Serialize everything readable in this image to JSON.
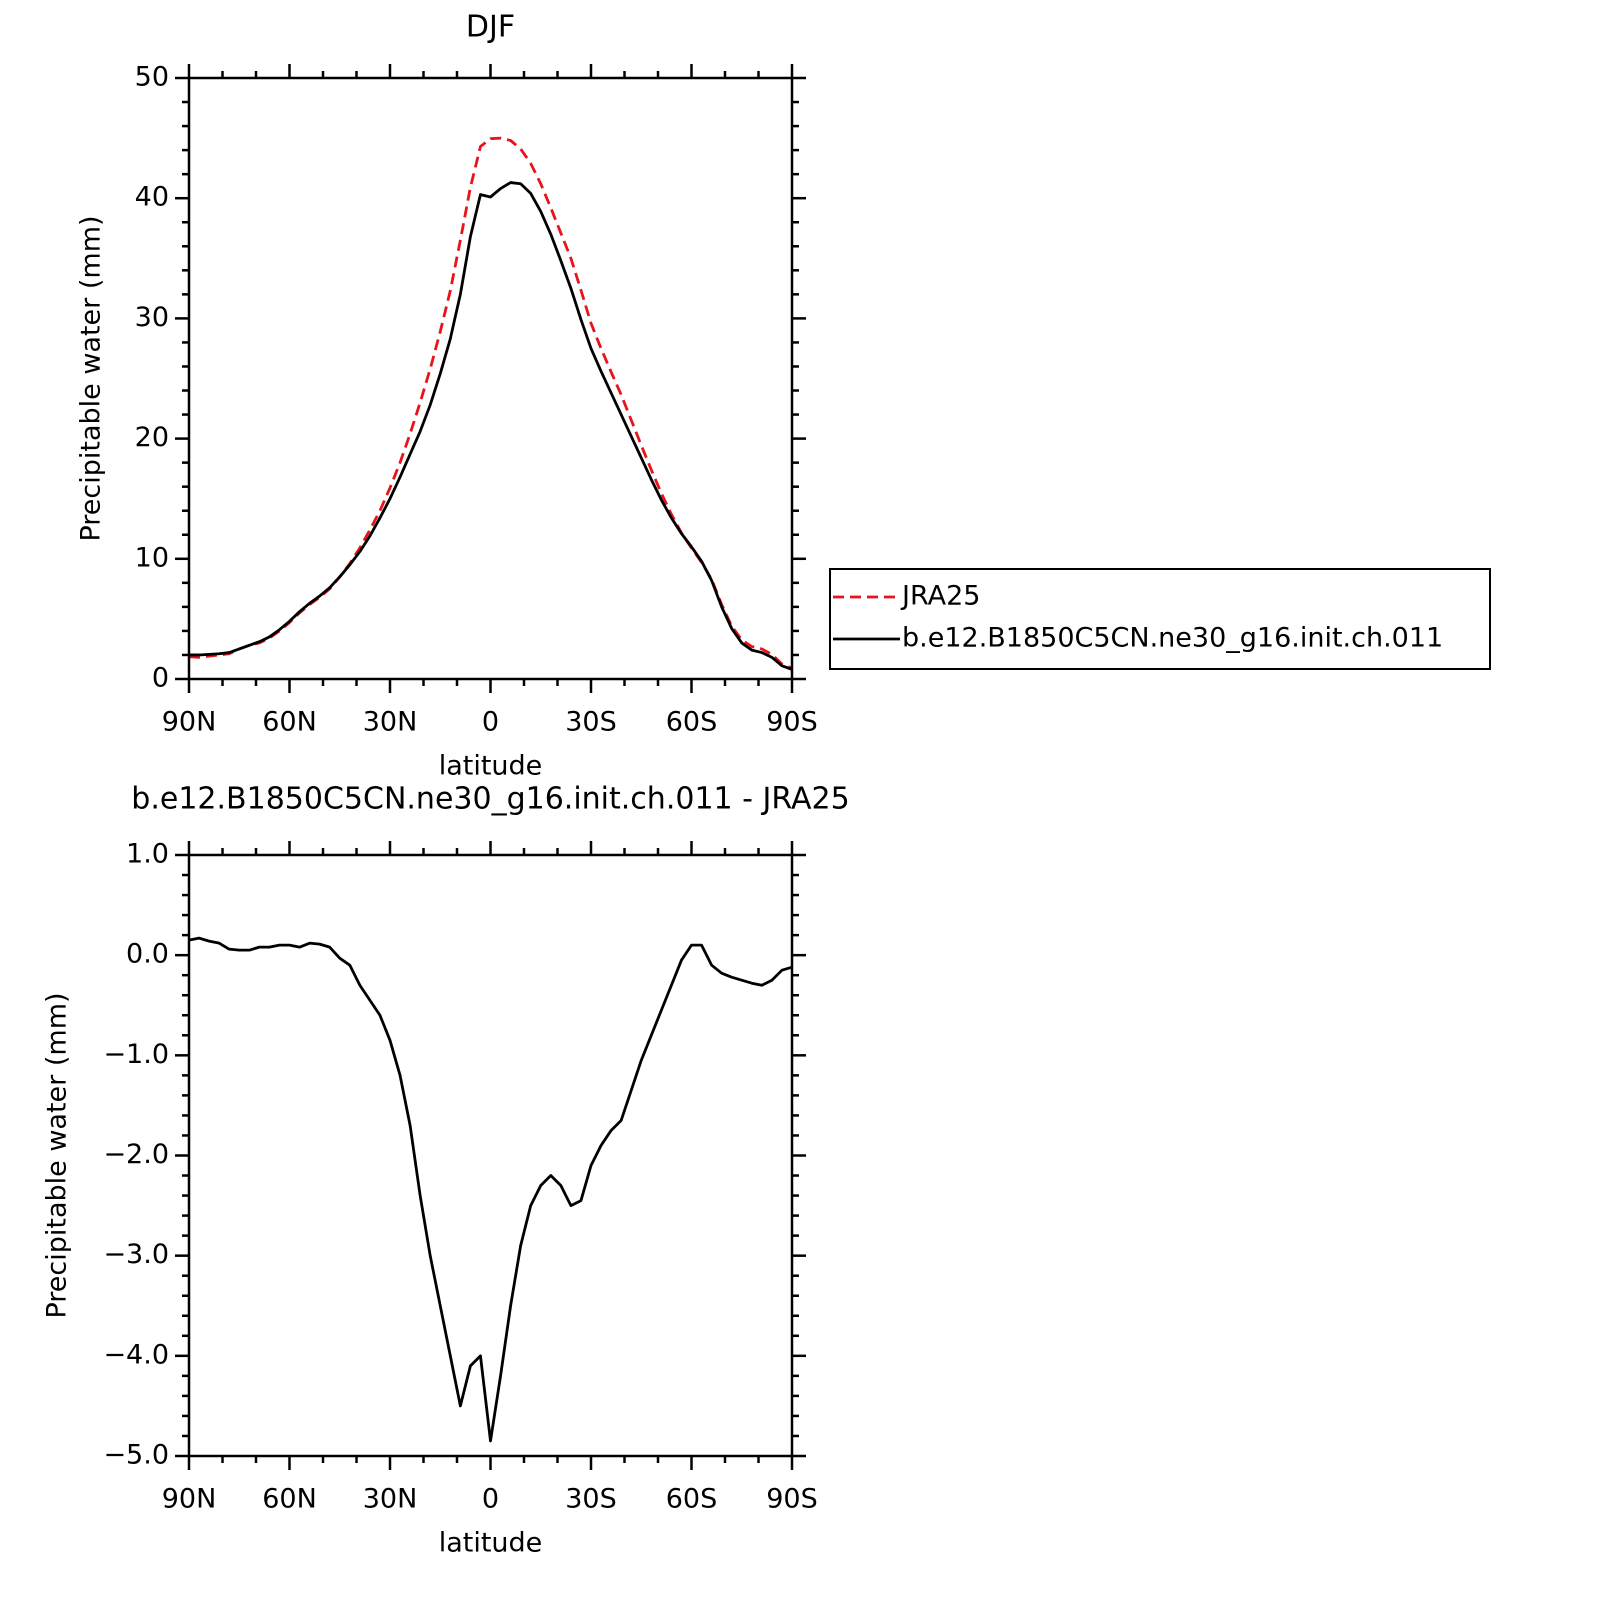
{
  "chart_data": [
    {
      "type": "line",
      "title": "DJF",
      "ylabel": "Precipitable water (mm)",
      "xlabel": "latitude",
      "x": [
        90,
        87,
        84,
        81,
        78,
        75,
        72,
        69,
        66,
        63,
        60,
        57,
        54,
        51,
        48,
        45,
        42,
        39,
        36,
        33,
        30,
        27,
        24,
        21,
        18,
        15,
        12,
        9,
        6,
        3,
        0,
        -3,
        -6,
        -9,
        -12,
        -15,
        -18,
        -21,
        -24,
        -27,
        -30,
        -33,
        -36,
        -39,
        -42,
        -45,
        -48,
        -51,
        -54,
        -57,
        -60,
        -63,
        -66,
        -69,
        -72,
        -75,
        -78,
        -81,
        -84,
        -87,
        -90
      ],
      "series": [
        {
          "name": "JRA25",
          "color": "#e8141c",
          "linestyle": "dashed",
          "values": [
            1.85,
            1.8,
            1.9,
            2.0,
            2.1,
            2.5,
            2.8,
            3.0,
            3.4,
            4.0,
            4.7,
            5.5,
            6.2,
            6.8,
            7.5,
            8.5,
            9.6,
            10.9,
            12.4,
            14.0,
            15.9,
            18.0,
            20.4,
            23.0,
            25.8,
            28.9,
            32.3,
            36.5,
            40.9,
            44.3,
            44.95,
            45.0,
            44.8,
            44.1,
            42.9,
            41.2,
            39.2,
            37.1,
            35.0,
            32.35,
            29.6,
            27.5,
            25.55,
            23.65,
            21.55,
            19.45,
            17.4,
            15.45,
            13.7,
            12.15,
            10.9,
            9.7,
            8.3,
            6.2,
            4.4,
            3.25,
            2.7,
            2.5,
            2.05,
            1.25,
            0.9
          ]
        },
        {
          "name": "b.e12.B1850C5CN.ne30_g16.init.ch.011",
          "color": "#000000",
          "linestyle": "solid",
          "values": [
            2.0,
            2.0,
            2.05,
            2.1,
            2.2,
            2.5,
            2.8,
            3.1,
            3.5,
            4.1,
            4.8,
            5.6,
            6.3,
            6.9,
            7.6,
            8.5,
            9.5,
            10.6,
            11.9,
            13.4,
            15.0,
            16.8,
            18.7,
            20.6,
            22.8,
            25.4,
            28.3,
            32.0,
            36.8,
            40.3,
            40.1,
            40.8,
            41.3,
            41.2,
            40.4,
            38.9,
            37.0,
            34.8,
            32.5,
            29.9,
            27.5,
            25.6,
            23.8,
            22.0,
            20.2,
            18.4,
            16.6,
            14.9,
            13.4,
            12.1,
            11.0,
            9.8,
            8.2,
            6.0,
            4.2,
            3.0,
            2.4,
            2.2,
            1.8,
            1.1,
            0.8
          ]
        }
      ],
      "xlim": [
        90,
        -90
      ],
      "xticks": [
        {
          "value": 90,
          "label": "90N"
        },
        {
          "value": 60,
          "label": "60N"
        },
        {
          "value": 30,
          "label": "30N"
        },
        0,
        {
          "value": -30,
          "label": "30S"
        },
        {
          "value": -60,
          "label": "60S"
        },
        {
          "value": -90,
          "label": "90S"
        }
      ],
      "ylim": [
        0,
        50
      ],
      "yticks": [
        0,
        10,
        20,
        30,
        40,
        50
      ],
      "legend": "right"
    },
    {
      "type": "line",
      "title": "b.e12.B1850C5CN.ne30_g16.init.ch.011 - JRA25",
      "ylabel": "Precipitable water (mm)",
      "xlabel": "latitude",
      "x": [
        90,
        87,
        84,
        81,
        78,
        75,
        72,
        69,
        66,
        63,
        60,
        57,
        54,
        51,
        48,
        45,
        42,
        39,
        36,
        33,
        30,
        27,
        24,
        21,
        18,
        15,
        12,
        9,
        6,
        3,
        0,
        -3,
        -6,
        -9,
        -12,
        -15,
        -18,
        -21,
        -24,
        -27,
        -30,
        -33,
        -36,
        -39,
        -42,
        -45,
        -48,
        -51,
        -54,
        -57,
        -60,
        -63,
        -66,
        -69,
        -72,
        -75,
        -78,
        -81,
        -84,
        -87,
        -90
      ],
      "series": [
        {
          "color": "#000000",
          "linestyle": "solid",
          "values": [
            0.15,
            0.17,
            0.14,
            0.12,
            0.06,
            0.05,
            0.05,
            0.08,
            0.08,
            0.1,
            0.1,
            0.08,
            0.12,
            0.11,
            0.08,
            -0.03,
            -0.1,
            -0.3,
            -0.45,
            -0.6,
            -0.85,
            -1.2,
            -1.7,
            -2.4,
            -3.0,
            -3.5,
            -4.0,
            -4.5,
            -4.1,
            -4.0,
            -4.85,
            -4.2,
            -3.5,
            -2.9,
            -2.5,
            -2.3,
            -2.2,
            -2.3,
            -2.5,
            -2.45,
            -2.1,
            -1.9,
            -1.75,
            -1.65,
            -1.35,
            -1.05,
            -0.8,
            -0.55,
            -0.3,
            -0.05,
            0.1,
            0.1,
            -0.1,
            -0.18,
            -0.22,
            -0.25,
            -0.28,
            -0.3,
            -0.25,
            -0.15,
            -0.12
          ]
        }
      ],
      "xlim": [
        90,
        -90
      ],
      "xticks": [
        {
          "value": 90,
          "label": "90N"
        },
        {
          "value": 60,
          "label": "60N"
        },
        {
          "value": 30,
          "label": "30N"
        },
        0,
        {
          "value": -30,
          "label": "30S"
        },
        {
          "value": -60,
          "label": "60S"
        },
        {
          "value": -90,
          "label": "90S"
        }
      ],
      "ylim": [
        -5,
        1
      ],
      "yticks": [
        {
          "value": -5,
          "label": "−5.0"
        },
        {
          "value": -4,
          "label": "−4.0"
        },
        {
          "value": -3,
          "label": "−3.0"
        },
        {
          "value": -2,
          "label": "−2.0"
        },
        {
          "value": -1,
          "label": "−1.0"
        },
        {
          "value": 0,
          "label": "0.0"
        },
        {
          "value": 1,
          "label": "1.0"
        }
      ]
    }
  ]
}
